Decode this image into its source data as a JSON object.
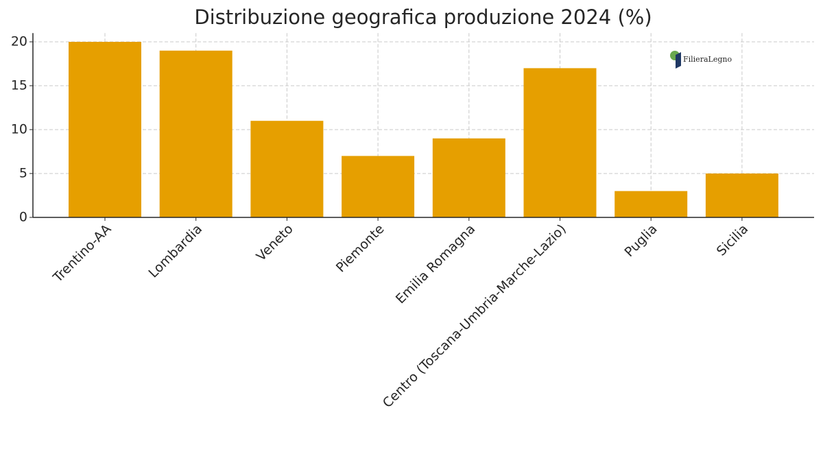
{
  "chart_data": {
    "type": "bar",
    "title": "Distribuzione geografica produzione 2024 (%)",
    "categories": [
      "Trentino-AA",
      "Lombardia",
      "Veneto",
      "Piemonte",
      "Emilia Romagna",
      "Centro (Toscana-Umbria-Marche-Lazio)",
      "Puglia",
      "Sicilia"
    ],
    "values": [
      20,
      19,
      11,
      7,
      9,
      17,
      3,
      5
    ],
    "color": "#e69f00",
    "ylim": [
      0,
      21
    ],
    "yticks": [
      0,
      5,
      10,
      15,
      20
    ],
    "grid": true
  },
  "logo": {
    "text": "FilieraLegno"
  }
}
